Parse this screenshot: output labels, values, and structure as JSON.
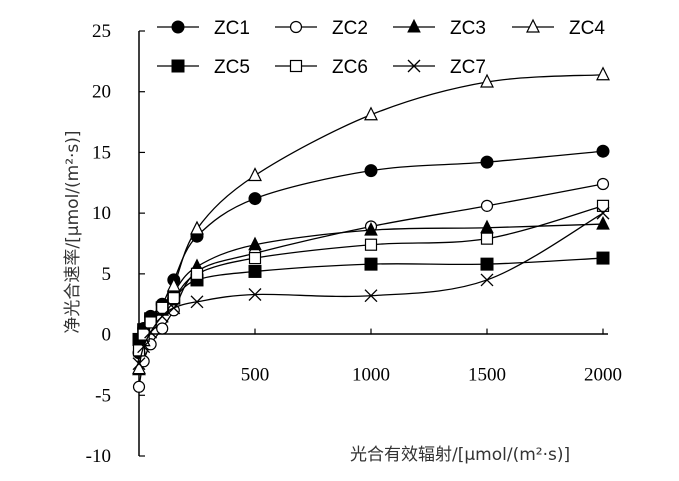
{
  "chart_data": {
    "type": "line",
    "xlabel": "光合有效辐射/[μmol/(m²·s)]",
    "ylabel": "净光合速率/[μmol/(m²·s)]",
    "xlim": [
      0,
      2000
    ],
    "ylim": [
      -10,
      25
    ],
    "x_ticks": [
      500,
      1000,
      1500,
      2000
    ],
    "y_ticks": [
      -10,
      -5,
      0,
      5,
      10,
      15,
      20,
      25
    ],
    "x_tick_labels": [
      "500",
      "1000",
      "1500",
      "2000"
    ],
    "y_tick_labels": [
      "-10",
      "-5",
      "0",
      "5",
      "10",
      "15",
      "20",
      "25"
    ],
    "grid": false,
    "legend_position": "top",
    "x": [
      0,
      20,
      50,
      100,
      150,
      250,
      500,
      1000,
      1500,
      2000
    ],
    "series": [
      {
        "name": "ZC1",
        "marker": "filled-circle",
        "values": [
          -1.5,
          0.5,
          1.5,
          2.5,
          4.5,
          8.1,
          11.2,
          13.5,
          14.2,
          15.1
        ]
      },
      {
        "name": "ZC2",
        "marker": "open-circle",
        "values": [
          -4.3,
          -2.2,
          -0.8,
          0.5,
          2.0,
          5.2,
          6.7,
          8.9,
          10.6,
          12.4
        ]
      },
      {
        "name": "ZC3",
        "marker": "filled-triangle",
        "values": [
          -2.9,
          -0.5,
          1.0,
          2.0,
          3.5,
          5.6,
          7.4,
          8.6,
          8.8,
          9.1
        ]
      },
      {
        "name": "ZC4",
        "marker": "open-triangle",
        "values": [
          -2.8,
          -0.5,
          1.0,
          2.2,
          4.0,
          8.7,
          13.1,
          18.1,
          20.8,
          21.4
        ]
      },
      {
        "name": "ZC5",
        "marker": "filled-square",
        "values": [
          -0.4,
          0.4,
          1.3,
          2.2,
          3.0,
          4.5,
          5.2,
          5.8,
          5.8,
          6.3
        ]
      },
      {
        "name": "ZC6",
        "marker": "open-square",
        "values": [
          -1.3,
          0.0,
          1.0,
          2.2,
          3.0,
          5.0,
          6.3,
          7.4,
          7.9,
          10.6
        ]
      },
      {
        "name": "ZC7",
        "marker": "x",
        "values": [
          -2.4,
          -1.0,
          0.2,
          1.5,
          2.2,
          2.7,
          3.3,
          3.2,
          4.5,
          10.0
        ]
      }
    ]
  }
}
